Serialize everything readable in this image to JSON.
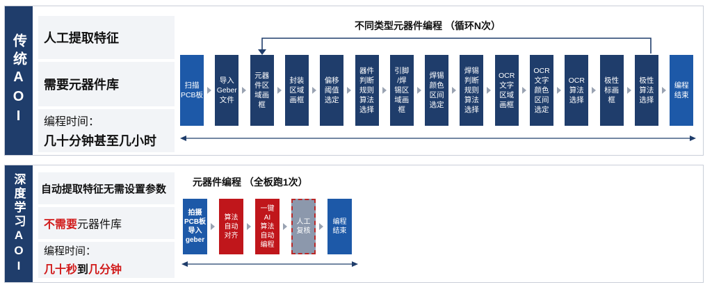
{
  "traditional": {
    "side_label": "传统AOI",
    "features": {
      "extract": "人工提取特征",
      "library": "需要元器件库",
      "time_label": "编程时间：",
      "time_value": "几十分钟甚至几小时"
    },
    "flow_title": "不同类型元器件编程 （循环N次）",
    "steps": [
      "扫描\nPCB板",
      "导入\nGeber\n文件",
      "元器\n件区\n域画\n框",
      "封装\n区域\n画框",
      "偏移\n阈值\n选定",
      "器件\n判断\n规则\n算法\n选择",
      "引脚\n/焊\n锡区\n域画\n框",
      "焊锡\n颜色\n区间\n选定",
      "焊锡\n判断\n规则\n算法\n选择",
      "OCR\n文字\n区域\n画框",
      "OCR\n文字\n颜色\n区间\n选定",
      "OCR\n算法\n选择",
      "极性\n标画\n框",
      "极性\n算法\n选择",
      "编程\n结束"
    ]
  },
  "deep": {
    "side_label": "深度学习AOI",
    "features": {
      "extract": "自动提取特征无需设置参数",
      "library_red": "不需要",
      "library_rest": "元器件库",
      "time_label": "编程时间：",
      "time_a": "几十秒",
      "time_b": "到",
      "time_c": "几分钟"
    },
    "flow_title": "元器件编程 （全板跑1次）",
    "steps": [
      "拍摄\nPCB板\n导入\ngeber",
      "算法\n自动\n对齐",
      "一键\nAI\n算法\n自动\n编程",
      "人工\n复核",
      "编程\n结束"
    ]
  },
  "colors": {
    "navy": "#1f3d6b",
    "blue": "#1d59a8",
    "red": "#c0161b",
    "grey": "#8c98ac"
  }
}
